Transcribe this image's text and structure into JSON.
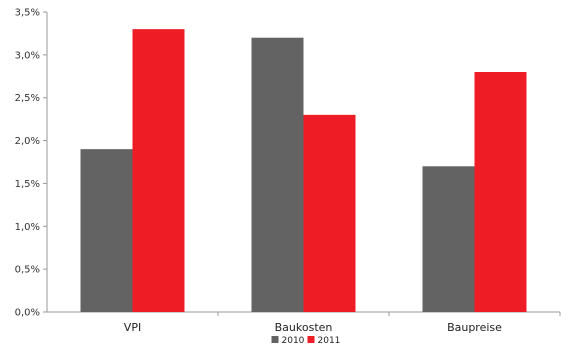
{
  "chart_data": {
    "type": "bar",
    "categories": [
      "VPI",
      "Baukosten",
      "Baupreise"
    ],
    "series": [
      {
        "name": "2010",
        "values": [
          1.9,
          3.2,
          1.7
        ],
        "color": "#636363"
      },
      {
        "name": "2011",
        "values": [
          3.3,
          2.3,
          2.8
        ],
        "color": "#ee1c25"
      }
    ],
    "ylim": [
      0,
      3.5
    ],
    "y_ticks": [
      "0,0%",
      "0,5%",
      "1,0%",
      "1,5%",
      "2,0%",
      "2,5%",
      "3,0%",
      "3,5%"
    ],
    "y_tick_values": [
      0,
      0.5,
      1.0,
      1.5,
      2.0,
      2.5,
      3.0,
      3.5
    ],
    "grid": false,
    "legend_position": "bottom-center",
    "title": "",
    "xlabel": "",
    "ylabel": ""
  }
}
